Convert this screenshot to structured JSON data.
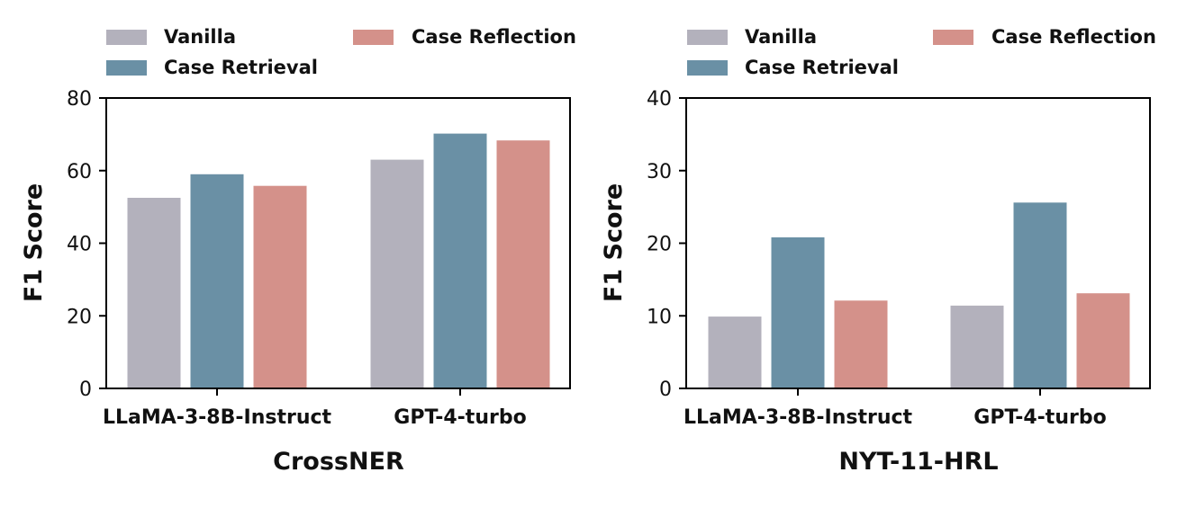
{
  "chart_data": [
    {
      "type": "bar",
      "title": "",
      "xlabel": "CrossNER",
      "ylabel": "F1 Score",
      "ylim": [
        0,
        80
      ],
      "yticks": [
        0,
        20,
        40,
        60,
        80
      ],
      "categories": [
        "LLaMA-3-8B-Instruct",
        "GPT-4-turbo"
      ],
      "series": [
        {
          "name": "Vanilla",
          "color": "#b3b1bc",
          "values": [
            52.5,
            63.0
          ]
        },
        {
          "name": "Case Retrieval",
          "color": "#6a90a5",
          "values": [
            59.0,
            70.2
          ]
        },
        {
          "name": "Case Reflection",
          "color": "#d4918a",
          "values": [
            55.8,
            68.3
          ]
        }
      ],
      "legend_position": "top"
    },
    {
      "type": "bar",
      "title": "",
      "xlabel": "NYT-11-HRL",
      "ylabel": "F1 Score",
      "ylim": [
        0,
        40
      ],
      "yticks": [
        0,
        10,
        20,
        30,
        40
      ],
      "categories": [
        "LLaMA-3-8B-Instruct",
        "GPT-4-turbo"
      ],
      "series": [
        {
          "name": "Vanilla",
          "color": "#b3b1bc",
          "values": [
            9.9,
            11.4
          ]
        },
        {
          "name": "Case Retrieval",
          "color": "#6a90a5",
          "values": [
            20.8,
            25.6
          ]
        },
        {
          "name": "Case Reflection",
          "color": "#d4918a",
          "values": [
            12.1,
            13.1
          ]
        }
      ],
      "legend_position": "top"
    }
  ]
}
